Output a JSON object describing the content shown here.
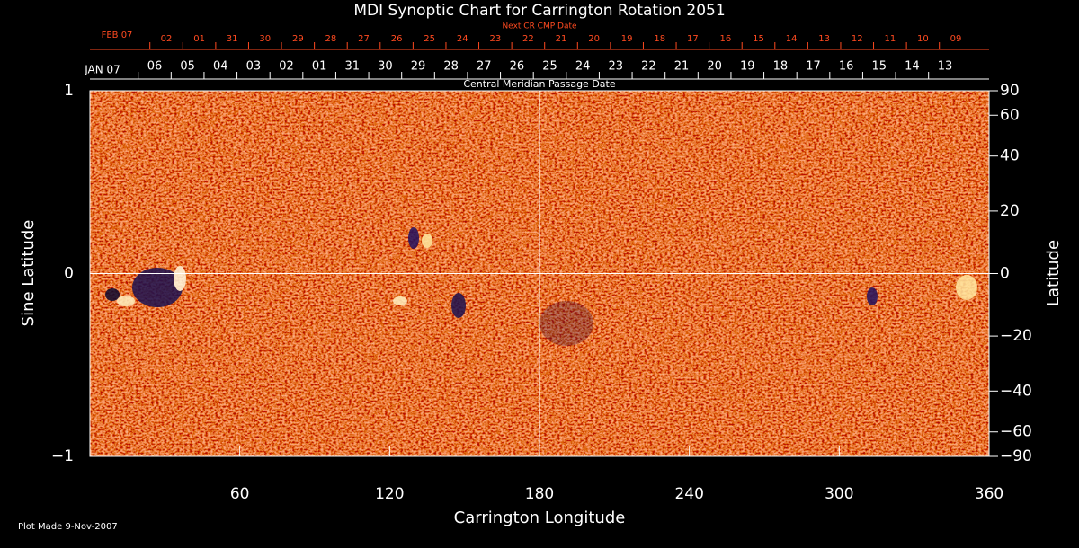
{
  "chart_data": {
    "type": "image",
    "title": "MDI Synoptic Chart for Carrington Rotation 2051",
    "xlabel": "Carrington Longitude",
    "ylabel": "Sine Latitude",
    "y2label": "Latitude",
    "xlim": [
      0,
      360
    ],
    "xticks": [
      60,
      120,
      180,
      240,
      300,
      360
    ],
    "ylim": [
      -1,
      1
    ],
    "yticks": [
      {
        "value": -1,
        "label": "−1"
      },
      0,
      1
    ],
    "y2scale": "sine",
    "y2lim": [
      -90,
      90
    ],
    "y2ticks": [
      {
        "value": -90,
        "label": "−90"
      },
      {
        "value": -60,
        "label": "−60"
      },
      {
        "value": -40,
        "label": "−40"
      },
      {
        "value": -20,
        "label": "−20"
      },
      0,
      20,
      40,
      60,
      90
    ],
    "grid": true,
    "next_cr_label": "Next CR CMP Date",
    "next_cr_month": "FEB 07",
    "next_cr_dates": [
      "02",
      "01",
      "31",
      "30",
      "29",
      "28",
      "27",
      "26",
      "25",
      "24",
      "23",
      "22",
      "21",
      "20",
      "19",
      "18",
      "17",
      "16",
      "15",
      "14",
      "13",
      "12",
      "11",
      "10",
      "09"
    ],
    "cmp_label": "Central Meridian Passage Date",
    "cmp_month": "JAN 07",
    "cmp_dates": [
      "06",
      "05",
      "04",
      "03",
      "02",
      "01",
      "31",
      "30",
      "29",
      "28",
      "27",
      "26",
      "25",
      "24",
      "23",
      "22",
      "21",
      "20",
      "19",
      "18",
      "17",
      "16",
      "15",
      "14",
      "13"
    ],
    "footnote": "Plot Made  9-Nov-2007"
  }
}
